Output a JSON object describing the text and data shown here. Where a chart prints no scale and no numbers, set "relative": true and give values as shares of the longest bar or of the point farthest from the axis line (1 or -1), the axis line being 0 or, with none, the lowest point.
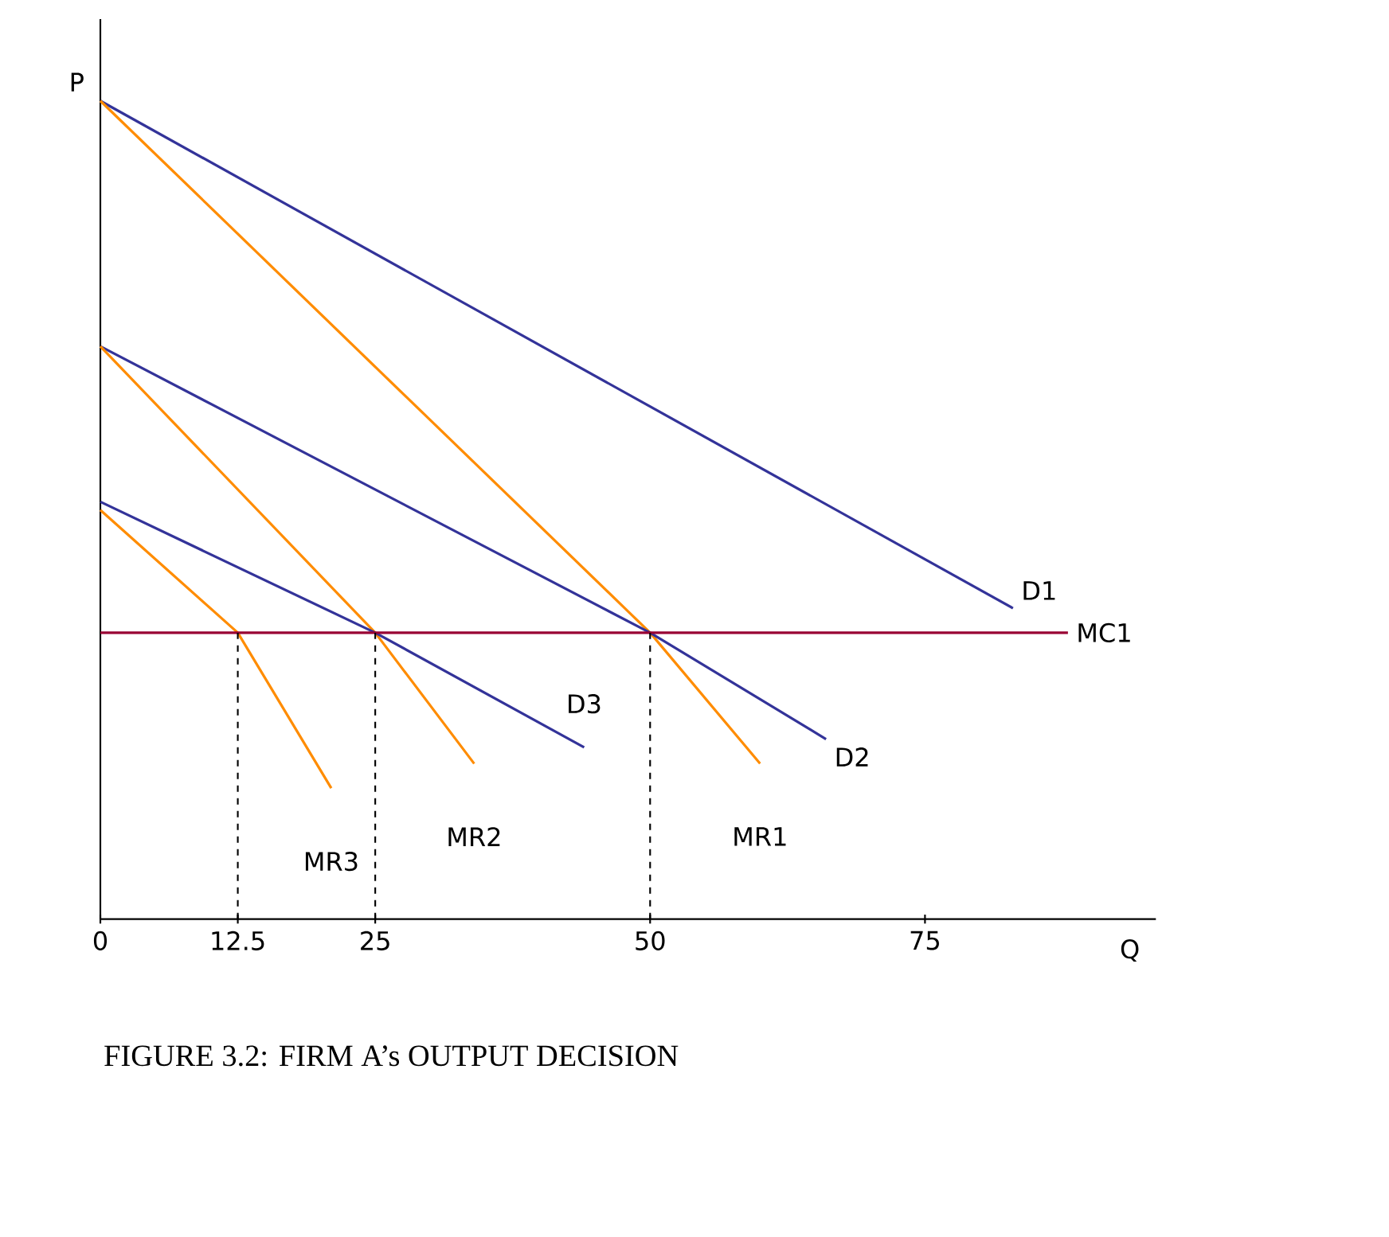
{
  "chart_data": {
    "type": "line",
    "title": "FIGURE 3.2: FIRM A’s OUTPUT DECISION",
    "xlabel": "Q",
    "ylabel": "P",
    "relative": true,
    "xlim": [
      0,
      96
    ],
    "xticks": [
      0,
      12.5,
      25,
      50,
      75
    ],
    "grid": false,
    "marker": "none",
    "series": [
      {
        "name": "D1",
        "color": "#333399",
        "x": [
          0,
          83
        ],
        "values": [
          1,
          0.38
        ]
      },
      {
        "name": "MR1",
        "color": "#ff8c00",
        "x": [
          0,
          50,
          60
        ],
        "values": [
          1,
          0.35,
          0.19
        ]
      },
      {
        "name": "D2",
        "color": "#333399",
        "x": [
          0,
          50,
          66
        ],
        "values": [
          0.7,
          0.35,
          0.22
        ]
      },
      {
        "name": "MR2",
        "color": "#ff8c00",
        "x": [
          0,
          25,
          34
        ],
        "values": [
          0.7,
          0.35,
          0.19
        ]
      },
      {
        "name": "D3",
        "color": "#333399",
        "x": [
          0,
          25,
          44
        ],
        "values": [
          0.51,
          0.35,
          0.21
        ]
      },
      {
        "name": "MR3",
        "color": "#ff8c00",
        "x": [
          0,
          12.5,
          21
        ],
        "values": [
          0.5,
          0.35,
          0.16
        ]
      },
      {
        "name": "MC1",
        "color": "#990033",
        "x": [
          0,
          88
        ],
        "values": [
          0.35,
          0.35
        ]
      },
      {
        "color": "#000000",
        "line_style": "dashed",
        "x": [
          12.5,
          12.5
        ],
        "values": [
          0,
          0.35
        ]
      },
      {
        "color": "#000000",
        "line_style": "dashed",
        "x": [
          25,
          25
        ],
        "values": [
          0,
          0.35
        ]
      },
      {
        "color": "#000000",
        "line_style": "dashed",
        "x": [
          50,
          50
        ],
        "values": [
          0,
          0.35
        ]
      }
    ]
  }
}
